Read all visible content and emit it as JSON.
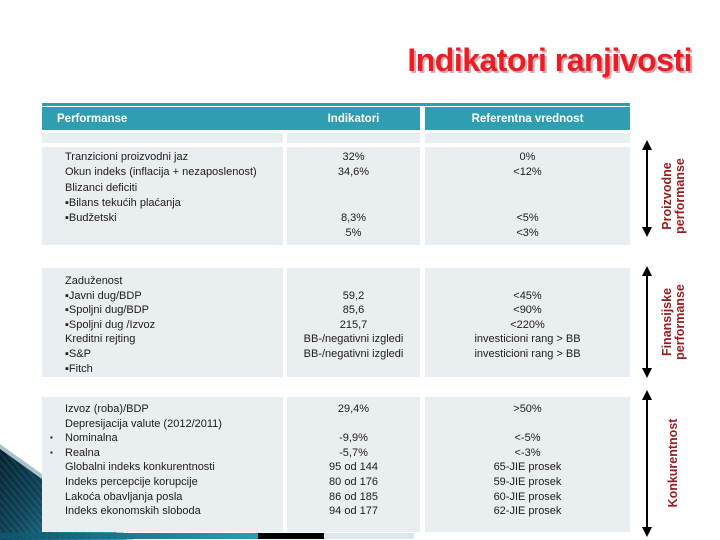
{
  "title": "Indikatori ranjivosti",
  "table": {
    "headers": [
      "Performanse",
      "Indikatori",
      "Referentna vrednost"
    ],
    "blocks": [
      {
        "name": "proizvodne-performanse",
        "rows": [
          {
            "p": "Tranzicioni proizvodni jaz",
            "i": "32%",
            "r": "0%"
          },
          {
            "p": "Okun indeks (inflacija + nezaposlenost)",
            "i": "34,6%",
            "r": "<12%"
          },
          {
            "p": "Blizanci deficiti",
            "i": "",
            "r": ""
          },
          {
            "p": "▪Bilans tekućih plaćanja",
            "i": "",
            "r": ""
          },
          {
            "p": "▪Budžetski",
            "i": "8,3%",
            "r": "<5%"
          },
          {
            "p": "",
            "i": "5%",
            "r": "<3%"
          }
        ]
      },
      {
        "name": "finansijske-performanse",
        "rows": [
          {
            "p": "Zaduženost",
            "i": "",
            "r": ""
          },
          {
            "p": "▪Javni dug/BDP",
            "i": "59,2",
            "r": "<45%"
          },
          {
            "p": "▪Spoljni dug/BDP",
            "i": "85,6",
            "r": "<90%"
          },
          {
            "p": "▪Spoljni dug /Izvoz",
            "i": "215,7",
            "r": "<220%"
          },
          {
            "p": "Kreditni rejting",
            "i": "BB-/negativni izgledi",
            "r": "investicioni rang > BB"
          },
          {
            "p": "▪S&P",
            "i": "BB-/negativni izgledi",
            "r": "investicioni rang > BB"
          },
          {
            "p": "▪Fitch",
            "i": "",
            "r": ""
          }
        ]
      },
      {
        "name": "konkurentnost",
        "rows": [
          {
            "p": "Izvoz (roba)/BDP",
            "i": "29,4%",
            "r": ">50%"
          },
          {
            "p": "Depresijacija valute (2012/2011)",
            "i": "",
            "r": ""
          },
          {
            "p": "Nominalna",
            "hang_bullet": true,
            "i": "-9,9%",
            "r": "<-5%"
          },
          {
            "p": "Realna",
            "hang_bullet": true,
            "i": "-5,7%",
            "r": "<-3%"
          },
          {
            "p": "Globalni indeks konkurentnosti",
            "i": "95 od 144",
            "r": "65-JIE prosek"
          },
          {
            "p": "Indeks percepcije korupcije",
            "i": "80 od 176",
            "r": "59-JIE prosek"
          },
          {
            "p": "Lakoća obavljanja posla",
            "i": "86 od 185",
            "r": "60-JIE prosek"
          },
          {
            "p": "Indeks ekonomskih sloboda",
            "i": "94 od 177",
            "r": "62-JIE prosek"
          }
        ]
      }
    ]
  },
  "side_labels": [
    {
      "lines": [
        "Proizvodne",
        "performanse"
      ]
    },
    {
      "lines": [
        "Finansijske",
        "performanse"
      ]
    },
    {
      "lines": [
        "Konkurentnost"
      ]
    }
  ],
  "bullet_glyph": "▪",
  "colors": {
    "header_teal": "#2E9EB0",
    "row_bg": "#E9EEF1",
    "title_red": "#EC1C24",
    "side_label_red": "#9C1A1C",
    "arrow_black": "#000000"
  }
}
